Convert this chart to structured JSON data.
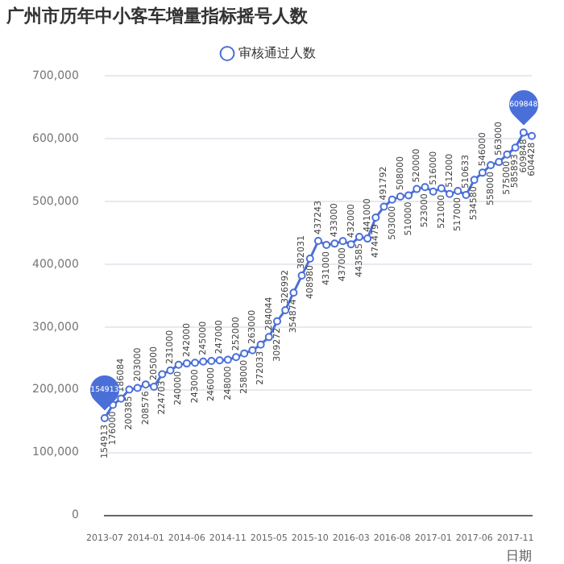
{
  "chart_data": {
    "type": "line",
    "title": "广州市历年中小客车增量指标摇号人数",
    "xlabel": "日期",
    "categories": [
      "2013-07",
      null,
      null,
      null,
      null,
      "2014-01",
      null,
      null,
      null,
      null,
      "2014-06",
      null,
      null,
      null,
      null,
      "2014-11",
      null,
      null,
      null,
      null,
      "2015-05",
      null,
      null,
      null,
      null,
      "2015-10",
      null,
      null,
      null,
      null,
      "2016-03",
      null,
      null,
      null,
      null,
      "2016-08",
      null,
      null,
      null,
      null,
      "2017-01",
      null,
      null,
      null,
      null,
      "2017-06",
      null,
      null,
      null,
      null,
      "2017-11",
      null,
      null
    ],
    "series": [
      {
        "name": "审核通过人数",
        "color": "#4a6fd8",
        "values": [
          154913,
          176000,
          186084,
          200385,
          203000,
          208576,
          205000,
          224703,
          231000,
          240000,
          242000,
          243000,
          245000,
          246000,
          247000,
          248000,
          252000,
          258000,
          263000,
          272033,
          284044,
          309272,
          326992,
          354874,
          382031,
          408980,
          437243,
          431000,
          433000,
          437000,
          432000,
          443585,
          441000,
          474479,
          491792,
          503000,
          508000,
          510000,
          520000,
          523000,
          516000,
          521000,
          512000,
          517000,
          510633,
          534580,
          546000,
          558000,
          563000,
          575000,
          585893,
          609848,
          604428
        ]
      }
    ],
    "annotations": [
      "609848",
      "154913"
    ],
    "ylim": [
      0,
      700000
    ],
    "yticks": [
      {
        "value": 0,
        "label": "0"
      },
      {
        "value": 100000,
        "label": "100,000"
      },
      {
        "value": 200000,
        "label": "200,000"
      },
      {
        "value": 300000,
        "label": "300,000"
      },
      {
        "value": 400000,
        "label": "400,000"
      },
      {
        "value": 500000,
        "label": "500,000"
      },
      {
        "value": 600000,
        "label": "600,000"
      },
      {
        "value": 700000,
        "label": "700,000"
      }
    ],
    "grid": "y",
    "legend": "top",
    "marker": "circle",
    "line_style": "solid",
    "data_labels": true
  }
}
